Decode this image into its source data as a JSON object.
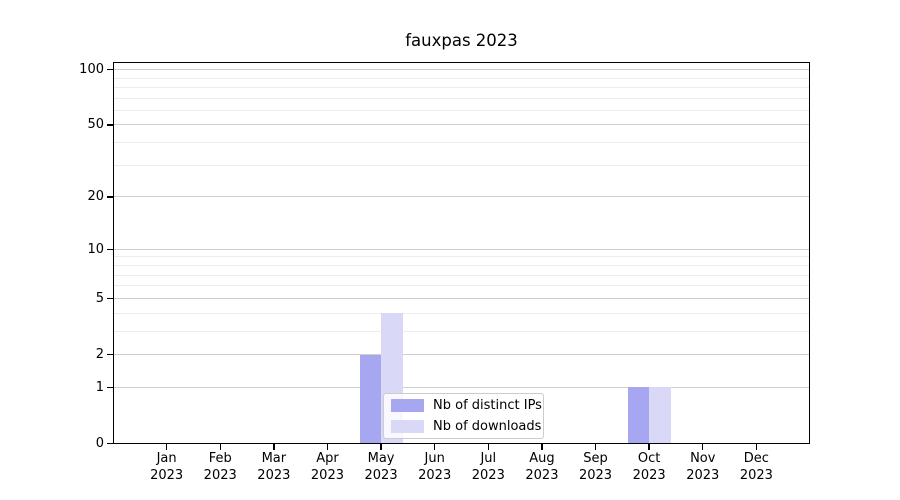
{
  "chart_data": {
    "type": "bar",
    "title": "fauxpas 2023",
    "xlabel": "",
    "ylabel": "",
    "categories": [
      "Jan 2023",
      "Feb 2023",
      "Mar 2023",
      "Apr 2023",
      "May 2023",
      "Jun 2023",
      "Jul 2023",
      "Aug 2023",
      "Sep 2023",
      "Oct 2023",
      "Nov 2023",
      "Dec 2023"
    ],
    "series": [
      {
        "name": "Nb of distinct IPs",
        "color": "#a6a6f1",
        "values": [
          0,
          0,
          0,
          0,
          2,
          0,
          0,
          0,
          0,
          1,
          0,
          0
        ]
      },
      {
        "name": "Nb of downloads",
        "color": "#d9d9f7",
        "values": [
          0,
          0,
          0,
          0,
          4,
          0,
          0,
          0,
          0,
          1,
          0,
          0
        ]
      }
    ],
    "yscale": "symlog (position proportional to log10(1+value))",
    "ylim": [
      0,
      110
    ],
    "y_ticks": [
      0,
      1,
      2,
      5,
      10,
      20,
      50,
      100
    ],
    "y_minor_gridlines": [
      3,
      4,
      6,
      7,
      8,
      9,
      30,
      40,
      60,
      70,
      80,
      90
    ],
    "grid": "horizontal major+minor",
    "legend_position": "inside bottom-center",
    "colors": {
      "axis": "#000000",
      "grid_major": "#cfcfcf",
      "grid_minor": "#ececec",
      "legend_border": "#cccccc",
      "text": "#000000"
    }
  }
}
